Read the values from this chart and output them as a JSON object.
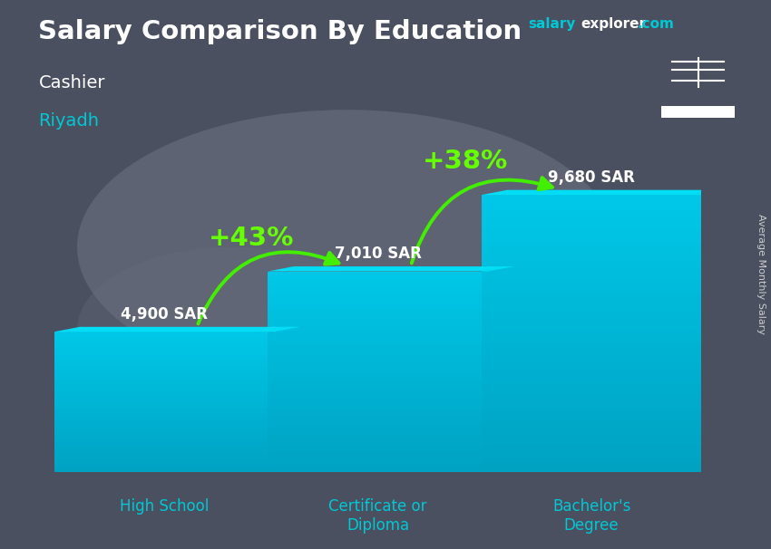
{
  "title": "Salary Comparison By Education",
  "subtitle1": "Cashier",
  "subtitle2": "Riyadh",
  "subtitle2_color": "#00c8d4",
  "ylabel": "Average Monthly Salary",
  "categories": [
    "High School",
    "Certificate or\nDiploma",
    "Bachelor's\nDegree"
  ],
  "values": [
    4900,
    7010,
    9680
  ],
  "value_labels": [
    "4,900 SAR",
    "7,010 SAR",
    "9,680 SAR"
  ],
  "bar_color_front": "#00c8e8",
  "bar_color_side": "#0090b0",
  "bar_color_top": "#00ddf5",
  "pct_labels": [
    "+43%",
    "+38%"
  ],
  "pct_color": "#66ff00",
  "arrow_color": "#44ee00",
  "bg_color": "#5a6070",
  "title_color": "#ffffff",
  "subtitle1_color": "#ffffff",
  "bar_label_color": "#ffffff",
  "cat_label_color": "#00c8d4",
  "ylim_max": 11500,
  "flag_bg": "#006c35",
  "website_salary_color": "#00c8d4",
  "website_explorer_color": "#ffffff",
  "website_com_color": "#00c8d4"
}
